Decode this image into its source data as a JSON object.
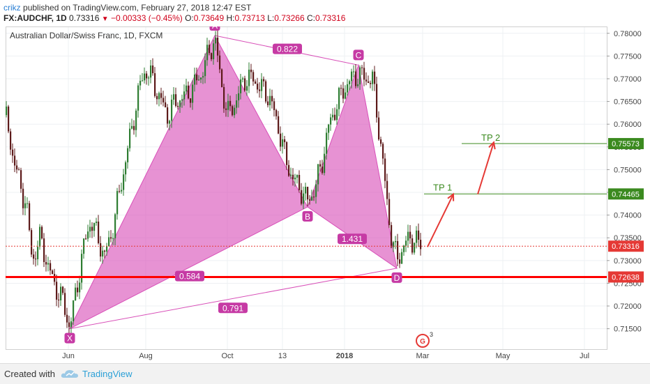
{
  "header": {
    "author": "crikz",
    "published_text": "published on TradingView.com, February 27, 2018 12:47 EST",
    "symbol": "FX:AUDCHF, 1D",
    "last": "0.73316",
    "change": "−0.00333 (−0.45%)",
    "open_label": "O:",
    "open": "0.73649",
    "high_label": "H:",
    "high": "0.73713",
    "low_label": "L:",
    "low": "0.73266",
    "close_label": "C:",
    "close": "0.73316"
  },
  "footer": {
    "created_with": "Created with",
    "brand": "TradingView"
  },
  "chart_data": {
    "type": "candlestick",
    "title": "Australian Dollar/Swiss Franc, 1D, FXCM",
    "y_range": [
      0.7105,
      0.7815
    ],
    "y_ticks": [
      "0.78000",
      "0.77500",
      "0.77000",
      "0.76500",
      "0.76000",
      "0.75500",
      "0.75000",
      "0.74500",
      "0.74000",
      "0.73500",
      "0.73000",
      "0.72500",
      "0.72000",
      "0.71500"
    ],
    "x_ticks": [
      "Jun",
      "Aug",
      "Oct",
      "13",
      "2018",
      "Mar",
      "May",
      "Jul"
    ],
    "price_labels": [
      {
        "value": 0.75573,
        "text": "0.75573",
        "color": "#3b8a1f"
      },
      {
        "value": 0.74465,
        "text": "0.74465",
        "color": "#3b8a1f"
      },
      {
        "value": 0.73316,
        "text": "0.73316",
        "color": "#e53935"
      },
      {
        "value": 0.72638,
        "text": "0.72638",
        "color": "#e53935"
      }
    ],
    "pattern_points": [
      {
        "label": "X",
        "price": 0.715
      },
      {
        "label": "A",
        "price": 0.7795
      },
      {
        "label": "B",
        "price": 0.7418
      },
      {
        "label": "C",
        "price": 0.773
      },
      {
        "label": "D",
        "price": 0.7283
      }
    ],
    "ratios": [
      "0.822",
      "0.584",
      "0.791",
      "1.431"
    ],
    "targets": [
      {
        "label": "TP 1",
        "price": 0.74465
      },
      {
        "label": "TP 2",
        "price": 0.75573
      }
    ],
    "support_level": 0.72638,
    "current_price": 0.73316,
    "event_badge": "3",
    "colors": {
      "up": "#2e7d32",
      "down": "#5d1a1a",
      "pattern": "#d84fb8",
      "support": "#ff0000",
      "target": "#3b8a1f",
      "arrow": "#e53935"
    }
  }
}
